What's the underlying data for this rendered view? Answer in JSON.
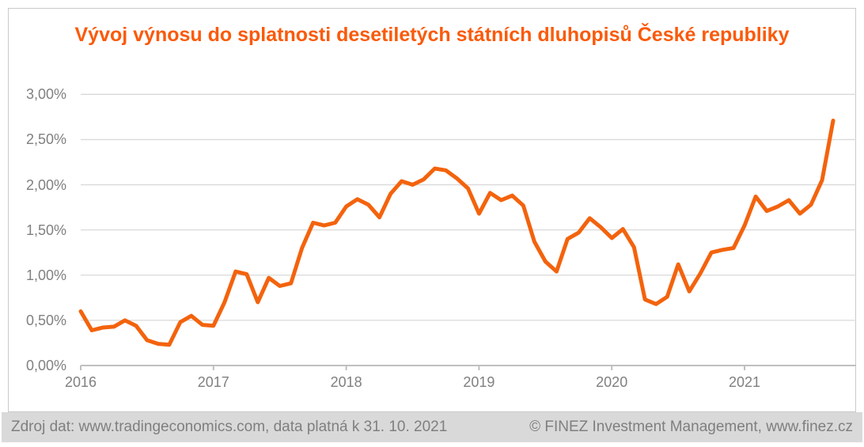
{
  "title": "Vývoj výnosu do splatnosti desetiletých státních dluhopisů České republiky",
  "footer": {
    "source_left": "Zdroj dat: www.tradingeconomics.com, data platná k 31. 10. 2021",
    "credit_right": "© FINEZ Investment Management, www.finez.cz"
  },
  "colors": {
    "title_orange": "#fa5a0a",
    "line_orange": "#f3630d",
    "gridline": "#d9d9d9",
    "axis_line": "#bfbfbf",
    "axis_text": "#808080",
    "footer_bg": "#d9d9d9",
    "footer_text": "#7f7f7f",
    "frame_border": "#c9c9c9"
  },
  "chart_data": {
    "type": "line",
    "title": "Vývoj výnosu do splatnosti desetiletých státních dluhopisů České republiky",
    "xlabel": "",
    "ylabel": "",
    "x_tick_labels": [
      "2016",
      "2017",
      "2018",
      "2019",
      "2020",
      "2021"
    ],
    "y_tick_labels": [
      "0,00%",
      "0,50%",
      "1,00%",
      "1,50%",
      "2,00%",
      "2,50%",
      "3,00%"
    ],
    "ylim_pct": [
      0.0,
      3.0
    ],
    "grid": "horizontal",
    "legend": "none",
    "unit": "%",
    "frequency": "monthly",
    "years": [
      "2016",
      "2017",
      "2018",
      "2019",
      "2020",
      "2021"
    ],
    "monthly_yield_pct": {
      "2016": [
        0.6,
        0.39,
        0.42,
        0.43,
        0.5,
        0.44,
        0.28,
        0.24,
        0.23,
        0.48,
        0.55,
        0.45
      ],
      "2017": [
        0.44,
        0.7,
        1.04,
        1.01,
        0.7,
        0.97,
        0.88,
        0.91,
        1.3,
        1.58,
        1.55,
        1.58
      ],
      "2018": [
        1.76,
        1.84,
        1.78,
        1.64,
        1.9,
        2.04,
        2.0,
        2.06,
        2.18,
        2.16,
        2.07,
        1.96
      ],
      "2019": [
        1.68,
        1.91,
        1.83,
        1.88,
        1.77,
        1.37,
        1.15,
        1.04,
        1.4,
        1.47,
        1.63,
        1.53
      ],
      "2020": [
        1.41,
        1.51,
        1.31,
        0.73,
        0.68,
        0.76,
        1.12,
        0.82,
        1.02,
        1.25,
        1.28,
        1.3
      ],
      "2021": [
        1.55,
        1.87,
        1.71,
        1.76,
        1.83,
        1.68,
        1.78,
        2.05,
        2.71
      ]
    }
  }
}
